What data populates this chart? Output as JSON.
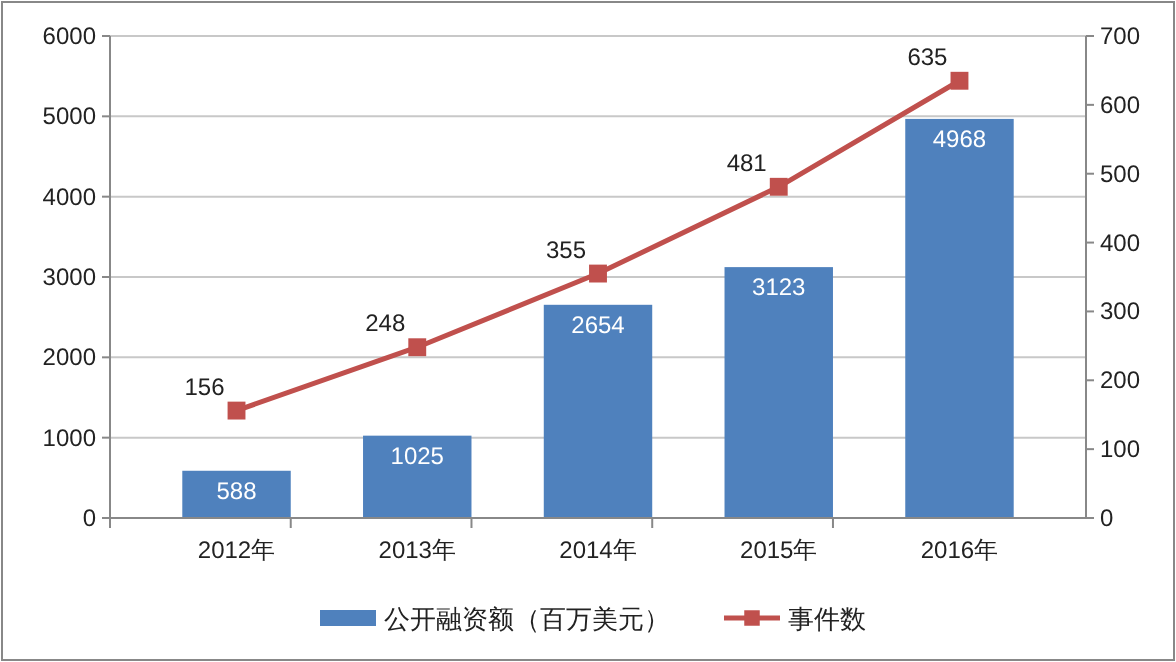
{
  "chart_data": {
    "type": "bar",
    "categories": [
      "2012年",
      "2013年",
      "2014年",
      "2015年",
      "2016年"
    ],
    "series": [
      {
        "name": "公开融资额（百万美元）",
        "color": "#4f81bd",
        "values": [
          588,
          1025,
          2654,
          3123,
          4968
        ]
      },
      {
        "name": "事件数",
        "type": "line",
        "axis": "y2",
        "color": "#c0504d",
        "values": [
          156,
          248,
          355,
          481,
          635
        ],
        "marker": "square"
      }
    ],
    "ylim": [
      0,
      6000
    ],
    "yticks": [
      0,
      1000,
      2000,
      3000,
      4000,
      5000,
      6000
    ],
    "y2lim": [
      0,
      700
    ],
    "y2ticks": [
      0,
      100,
      200,
      300,
      400,
      500,
      600,
      700
    ],
    "grid": "y",
    "legend": "bottom",
    "data_labels": true
  }
}
